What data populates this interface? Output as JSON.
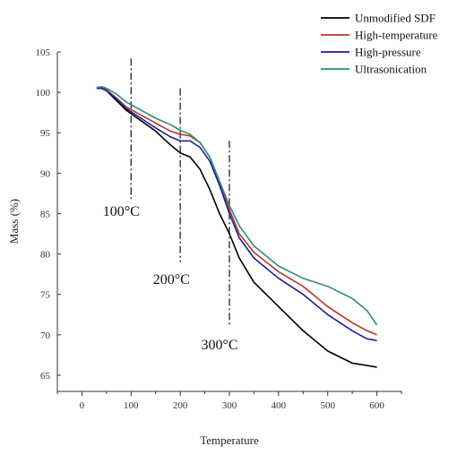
{
  "chart_data": {
    "type": "line",
    "xlabel": "Temperature",
    "ylabel": "Mass (%)",
    "xlim": [
      -50,
      650
    ],
    "ylim": [
      63,
      105
    ],
    "xticks": [
      0,
      100,
      200,
      300,
      400,
      500,
      600
    ],
    "yticks": [
      65,
      70,
      75,
      80,
      85,
      90,
      95,
      100,
      105
    ],
    "legend_position": "top-right",
    "series": [
      {
        "name": "Unmodified SDF",
        "color": "#000000",
        "x": [
          30,
          40,
          50,
          70,
          90,
          120,
          150,
          180,
          200,
          220,
          240,
          260,
          280,
          300,
          320,
          350,
          400,
          450,
          500,
          550,
          580,
          600
        ],
        "y": [
          100.5,
          100.5,
          100.2,
          99,
          97.8,
          96.5,
          95.2,
          93.5,
          92.5,
          92,
          90.5,
          88,
          85,
          82.5,
          79.5,
          76.5,
          73.5,
          70.5,
          68,
          66.5,
          66.2,
          66
        ]
      },
      {
        "name": "High-temperature",
        "color": "#c0302a",
        "x": [
          30,
          40,
          50,
          70,
          90,
          120,
          150,
          180,
          200,
          220,
          240,
          260,
          280,
          300,
          320,
          350,
          400,
          450,
          500,
          550,
          580,
          600
        ],
        "y": [
          100.6,
          100.6,
          100.3,
          99.3,
          98.2,
          97.2,
          96.2,
          95.2,
          94.8,
          94.6,
          93.8,
          92,
          89,
          85.5,
          82.5,
          80.2,
          77.8,
          76,
          73.5,
          71.5,
          70.5,
          70
        ]
      },
      {
        "name": "High-pressure",
        "color": "#1f1f9c",
        "x": [
          30,
          40,
          50,
          70,
          90,
          120,
          150,
          180,
          200,
          220,
          240,
          260,
          280,
          300,
          320,
          350,
          400,
          450,
          500,
          550,
          580,
          600
        ],
        "y": [
          100.5,
          100.5,
          100.2,
          99.2,
          98,
          96.8,
          95.6,
          94.5,
          94,
          94,
          93.2,
          91.5,
          88.5,
          85,
          82,
          79.5,
          77,
          75,
          72.5,
          70.5,
          69.5,
          69.3
        ]
      },
      {
        "name": "Ultrasonication",
        "color": "#2e8b7a",
        "x": [
          30,
          40,
          50,
          70,
          90,
          120,
          150,
          180,
          200,
          220,
          240,
          260,
          280,
          300,
          320,
          350,
          400,
          450,
          500,
          550,
          580,
          600
        ],
        "y": [
          100.6,
          100.7,
          100.5,
          99.8,
          98.8,
          97.8,
          96.8,
          96,
          95.3,
          94.8,
          93.8,
          92,
          89,
          86,
          83.5,
          81,
          78.5,
          77,
          76,
          74.5,
          73,
          71.2
        ]
      }
    ],
    "annotations": [
      {
        "text": "100°C",
        "x": 100,
        "y_from": 86.5,
        "y_to": 104.2,
        "label_x": 80,
        "label_y": 84.7
      },
      {
        "text": "200°C",
        "x": 200,
        "y_from": 79,
        "y_to": 100.5,
        "label_x": 182,
        "label_y": 76.3
      },
      {
        "text": "300°C",
        "x": 300,
        "y_from": 71,
        "y_to": 94,
        "label_x": 280,
        "label_y": 68.2
      }
    ]
  }
}
